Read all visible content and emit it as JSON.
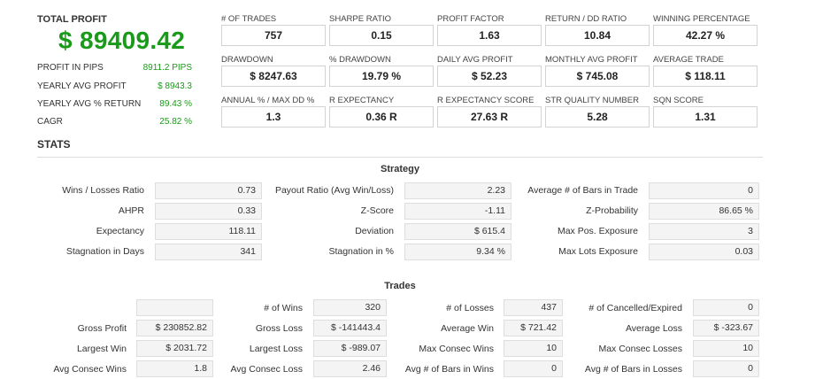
{
  "summary": {
    "total_profit_label": "TOTAL PROFIT",
    "total_profit_value": "$ 89409.42",
    "rows": [
      {
        "label": "PROFIT IN PIPS",
        "value": "8911.2 PIPS"
      },
      {
        "label": "YEARLY AVG PROFIT",
        "value": "$ 8943.3"
      },
      {
        "label": "YEARLY AVG % RETURN",
        "value": "89.43 %"
      },
      {
        "label": "CAGR",
        "value": "25.82 %"
      }
    ]
  },
  "metrics": [
    {
      "label": "# OF TRADES",
      "value": "757"
    },
    {
      "label": "SHARPE RATIO",
      "value": "0.15"
    },
    {
      "label": "PROFIT FACTOR",
      "value": "1.63"
    },
    {
      "label": "RETURN / DD RATIO",
      "value": "10.84"
    },
    {
      "label": "WINNING PERCENTAGE",
      "value": "42.27 %"
    },
    {
      "label": "DRAWDOWN",
      "value": "$ 8247.63"
    },
    {
      "label": "% DRAWDOWN",
      "value": "19.79 %"
    },
    {
      "label": "DAILY AVG PROFIT",
      "value": "$ 52.23"
    },
    {
      "label": "MONTHLY AVG PROFIT",
      "value": "$ 745.08"
    },
    {
      "label": "AVERAGE TRADE",
      "value": "$ 118.11"
    },
    {
      "label": "ANNUAL % / MAX DD %",
      "value": "1.3"
    },
    {
      "label": "R EXPECTANCY",
      "value": "0.36 R"
    },
    {
      "label": "R EXPECTANCY SCORE",
      "value": "27.63 R"
    },
    {
      "label": "STR QUALITY NUMBER",
      "value": "5.28"
    },
    {
      "label": "SQN SCORE",
      "value": "1.31"
    }
  ],
  "stats_title": "STATS",
  "strategy": {
    "title": "Strategy",
    "rows": [
      [
        {
          "label": "Wins / Losses Ratio",
          "value": "0.73"
        },
        {
          "label": "Payout Ratio (Avg Win/Loss)",
          "value": "2.23"
        },
        {
          "label": "Average # of Bars in Trade",
          "value": "0"
        }
      ],
      [
        {
          "label": "AHPR",
          "value": "0.33"
        },
        {
          "label": "Z-Score",
          "value": "-1.11"
        },
        {
          "label": "Z-Probability",
          "value": "86.65 %"
        }
      ],
      [
        {
          "label": "Expectancy",
          "value": "118.11"
        },
        {
          "label": "Deviation",
          "value": "$ 615.4"
        },
        {
          "label": "Max Pos. Exposure",
          "value": "3"
        }
      ],
      [
        {
          "label": "Stagnation in Days",
          "value": "341"
        },
        {
          "label": "Stagnation in %",
          "value": "9.34 %"
        },
        {
          "label": "Max Lots Exposure",
          "value": "0.03"
        }
      ]
    ]
  },
  "trades": {
    "title": "Trades",
    "rows": [
      [
        {
          "label": "",
          "value": ""
        },
        {
          "label": "# of Wins",
          "value": "320"
        },
        {
          "label": "# of Losses",
          "value": "437"
        },
        {
          "label": "# of Cancelled/Expired",
          "value": "0"
        }
      ],
      [
        {
          "label": "Gross Profit",
          "value": "$ 230852.82"
        },
        {
          "label": "Gross Loss",
          "value": "$ -141443.4"
        },
        {
          "label": "Average Win",
          "value": "$ 721.42"
        },
        {
          "label": "Average Loss",
          "value": "$ -323.67"
        }
      ],
      [
        {
          "label": "Largest Win",
          "value": "$ 2031.72"
        },
        {
          "label": "Largest Loss",
          "value": "$ -989.07"
        },
        {
          "label": "Max Consec Wins",
          "value": "10"
        },
        {
          "label": "Max Consec Losses",
          "value": "10"
        }
      ],
      [
        {
          "label": "Avg Consec Wins",
          "value": "1.8"
        },
        {
          "label": "Avg Consec Loss",
          "value": "2.46"
        },
        {
          "label": "Avg # of Bars in Wins",
          "value": "0"
        },
        {
          "label": "Avg # of Bars in Losses",
          "value": "0"
        }
      ]
    ]
  }
}
